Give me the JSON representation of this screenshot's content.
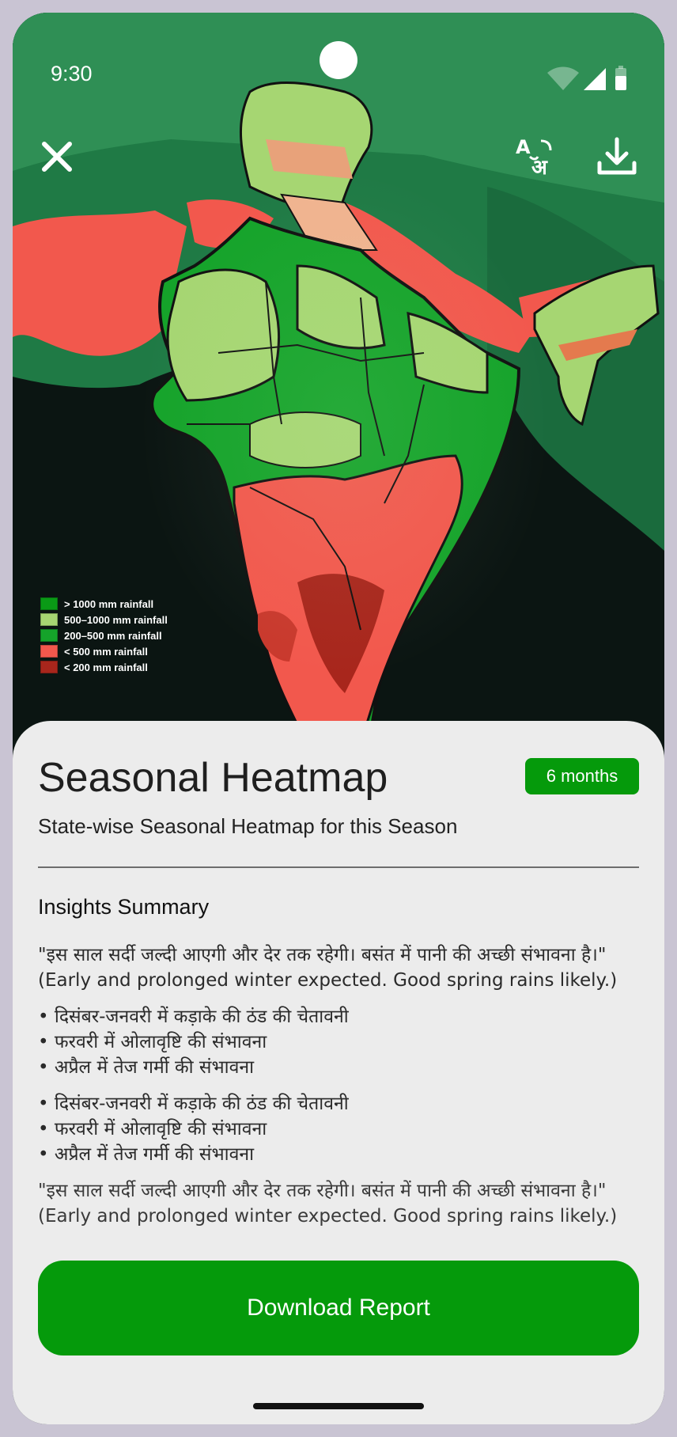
{
  "status_bar": {
    "time": "9:30"
  },
  "icons": {
    "close": "close-icon",
    "translate": "translate-icon",
    "download": "download-icon",
    "wifi": "wifi-icon",
    "signal": "signal-icon",
    "battery": "battery-icon"
  },
  "legend": [
    {
      "label": "> 1000 mm rainfall",
      "color": "#0a9a16"
    },
    {
      "label": "500–1000 mm rainfall",
      "color": "#a6d672"
    },
    {
      "label": "200–500 mm rainfall",
      "color": "#15a32a"
    },
    {
      "label": "< 500 mm rainfall",
      "color": "#f2584d"
    },
    {
      "label": "< 200 mm rainfall",
      "color": "#a8261c"
    }
  ],
  "sheet": {
    "title": "Seasonal Heatmap",
    "badge": "6 months",
    "subtitle": "State-wise Seasonal Heatmap for this Season",
    "insights_heading": "Insights Summary",
    "paragraph": "\"इस साल सर्दी जल्दी आएगी और देर तक रहेगी। बसंत में पानी की अच्छी संभावना है।\" (Early and prolonged winter expected. Good spring rains likely.)",
    "bullets": [
      "• दिसंबर-जनवरी में कड़ाके की ठंड की चेतावनी",
      "• फरवरी में ओलावृष्टि की संभावना",
      "• अप्रैल में तेज गर्मी की संभावना"
    ],
    "bullets_repeat": [
      "• दिसंबर-जनवरी में कड़ाके की ठंड की चेतावनी",
      "• फरवरी में ओलावृष्टि की संभावना",
      "• अप्रैल में तेज गर्मी की संभावना"
    ],
    "paragraph_repeat": "\"इस साल सर्दी जल्दी आएगी और देर तक रहेगी। बसंत में पानी की अच्छी संभावना है।\" (Early and prolonged winter expected. Good spring rains likely.)",
    "download_button": "Download Report"
  },
  "colors": {
    "accent": "#059a0b",
    "sheet_bg": "#ececec"
  }
}
